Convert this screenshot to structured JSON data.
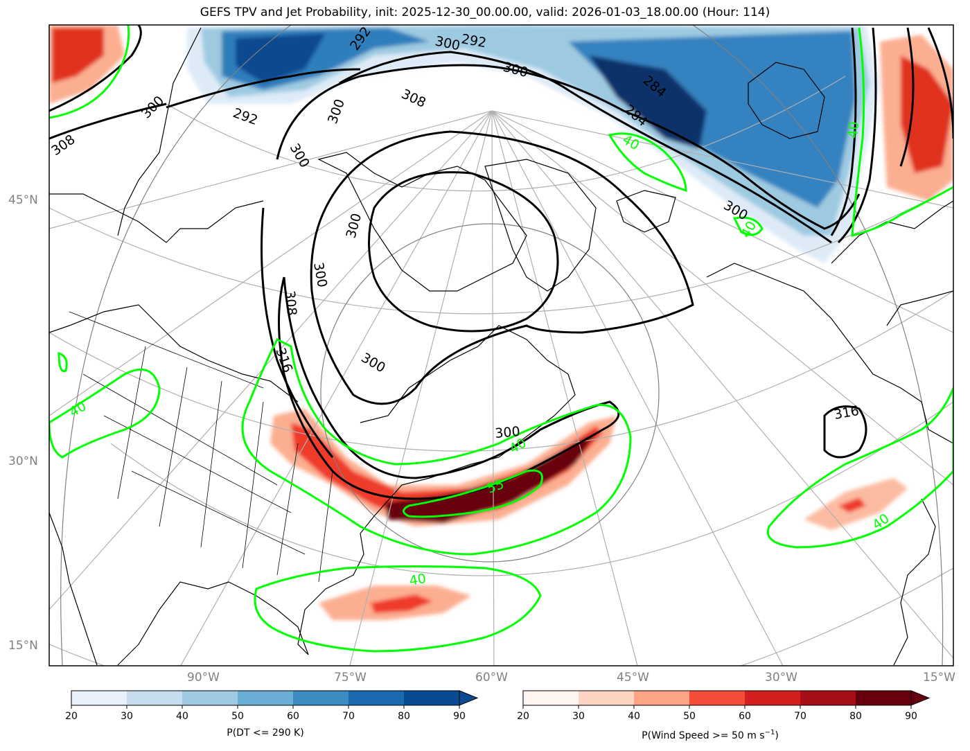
{
  "title": "GEFS TPV and Jet Probability, init: 2025-12-30_00.00.00, valid: 2026-01-03_18.00.00 (Hour: 114)",
  "lat_labels": [
    "45°N",
    "30°N",
    "15°N"
  ],
  "lon_labels": [
    "90°W",
    "75°W",
    "60°W",
    "45°W",
    "30°W",
    "15°W"
  ],
  "theta_contour_labels": [
    "292",
    "292",
    "292",
    "300",
    "300",
    "300",
    "300",
    "300",
    "300",
    "300",
    "300",
    "308",
    "308",
    "308",
    "284",
    "284",
    "316",
    "316"
  ],
  "jet_contour_labels": [
    "40",
    "40",
    "40",
    "40",
    "40",
    "40",
    "40",
    "55"
  ],
  "colorbar_dt": {
    "label": "P(DT <= 290 K)",
    "ticks": [
      "20",
      "30",
      "40",
      "50",
      "60",
      "70",
      "80",
      "90"
    ],
    "colors": [
      "#e8f1fa",
      "#c8dcf0",
      "#9fcae1",
      "#6aaed6",
      "#3c8bc3",
      "#1b69af",
      "#084b93"
    ]
  },
  "colorbar_wind": {
    "label_main": "P(Wind Speed >= 50 m s",
    "label_sup": "−1",
    "label_end": ")",
    "ticks": [
      "20",
      "30",
      "40",
      "50",
      "60",
      "70",
      "80",
      "90"
    ],
    "colors": [
      "#fff5f0",
      "#fdd4c2",
      "#fca486",
      "#f44d38",
      "#d3201f",
      "#a50f15",
      "#67000d"
    ]
  },
  "contour_colors": {
    "theta": "#000000",
    "jet": "#00ff00"
  }
}
